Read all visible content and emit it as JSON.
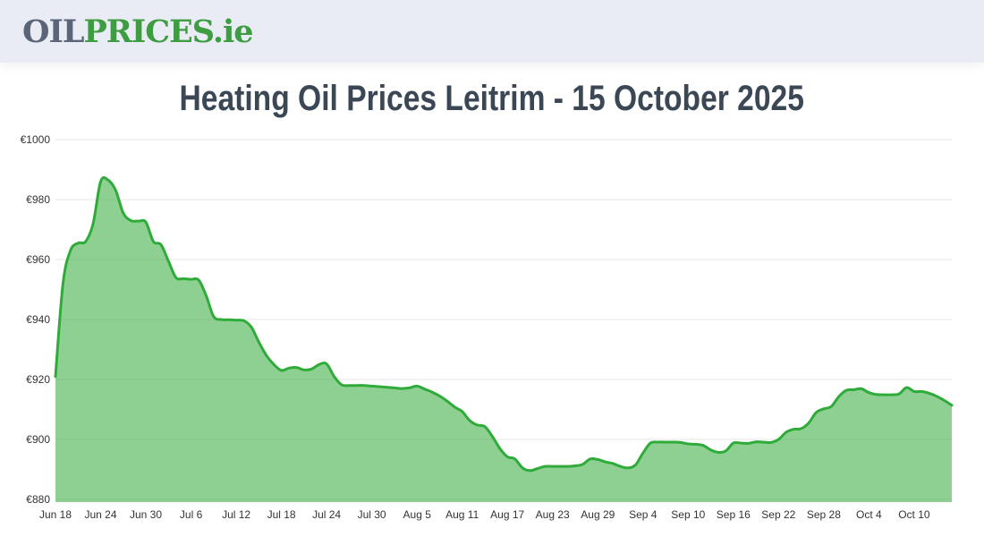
{
  "header": {
    "logo": {
      "part1": "OIL",
      "part2": "PRICES",
      "part3": ".ie"
    },
    "colors": {
      "background": "#e9ecf4",
      "part1_color": "#5a6577",
      "part2_color": "#3e9c41"
    }
  },
  "title": {
    "text": "Heating Oil Prices Leitrim - 15 October 2025",
    "color": "#3b4754"
  },
  "chart_data": {
    "type": "area",
    "title": "Heating Oil Prices Leitrim - 15 October 2025",
    "currency": "€",
    "ylim": [
      880,
      1000
    ],
    "ytick_step": 20,
    "ytick_labels": [
      "€1000",
      "€980",
      "€960",
      "€940",
      "€920",
      "€900",
      "€880"
    ],
    "x_tick_labels": [
      "Jun 18",
      "Jun 24",
      "Jun 30",
      "Jul 6",
      "Jul 12",
      "Jul 18",
      "Jul 24",
      "Jul 30",
      "Aug 5",
      "Aug 11",
      "Aug 17",
      "Aug 23",
      "Aug 29",
      "Sep 4",
      "Sep 10",
      "Sep 16",
      "Sep 22",
      "Sep 28",
      "Oct 4",
      "Oct 10"
    ],
    "x_tick_every_days": 6,
    "x_start_label": "Jun 18",
    "grid": true,
    "legend": false,
    "series": [
      {
        "values": [
          921,
          952,
          963,
          965.5,
          966,
          972,
          986,
          986.5,
          983,
          975.5,
          973,
          972.8,
          972.5,
          966,
          965,
          959.5,
          954,
          953.6,
          953.4,
          953.2,
          948,
          941,
          940,
          939.9,
          939.8,
          939.6,
          937.5,
          932.5,
          928,
          925,
          923,
          923.8,
          924,
          923.2,
          923.5,
          925,
          925.2,
          921,
          918.2,
          918,
          918,
          918,
          917.8,
          917.6,
          917.4,
          917.2,
          917,
          917.2,
          917.8,
          916.8,
          915.8,
          914.5,
          912.8,
          910.8,
          909.3,
          906.3,
          904.8,
          904.3,
          901,
          897,
          894.2,
          893.5,
          890.5,
          889.6,
          890.3,
          891,
          891,
          891,
          891,
          891.2,
          891.7,
          893.5,
          893.3,
          892.5,
          892,
          891,
          890.5,
          891.5,
          895.5,
          898.8,
          899.1,
          899.1,
          899.1,
          899,
          898.5,
          898.4,
          898,
          896.5,
          895.7,
          896.2,
          898.8,
          898.8,
          898.7,
          899.2,
          899.1,
          899,
          900,
          902.4,
          903.4,
          903.6,
          905.5,
          909,
          910.2,
          911,
          914.3,
          916.4,
          916.6,
          916.9,
          915.6,
          915,
          914.9,
          914.9,
          915.2,
          917.3,
          916,
          916,
          915.4,
          914.4,
          913,
          911.4
        ]
      }
    ],
    "colors": {
      "line": "#2fab3a",
      "fill": "#3cae44",
      "fill_opacity": 0.58,
      "grid": "#e6e6e6",
      "tick_label": "#333333"
    }
  }
}
